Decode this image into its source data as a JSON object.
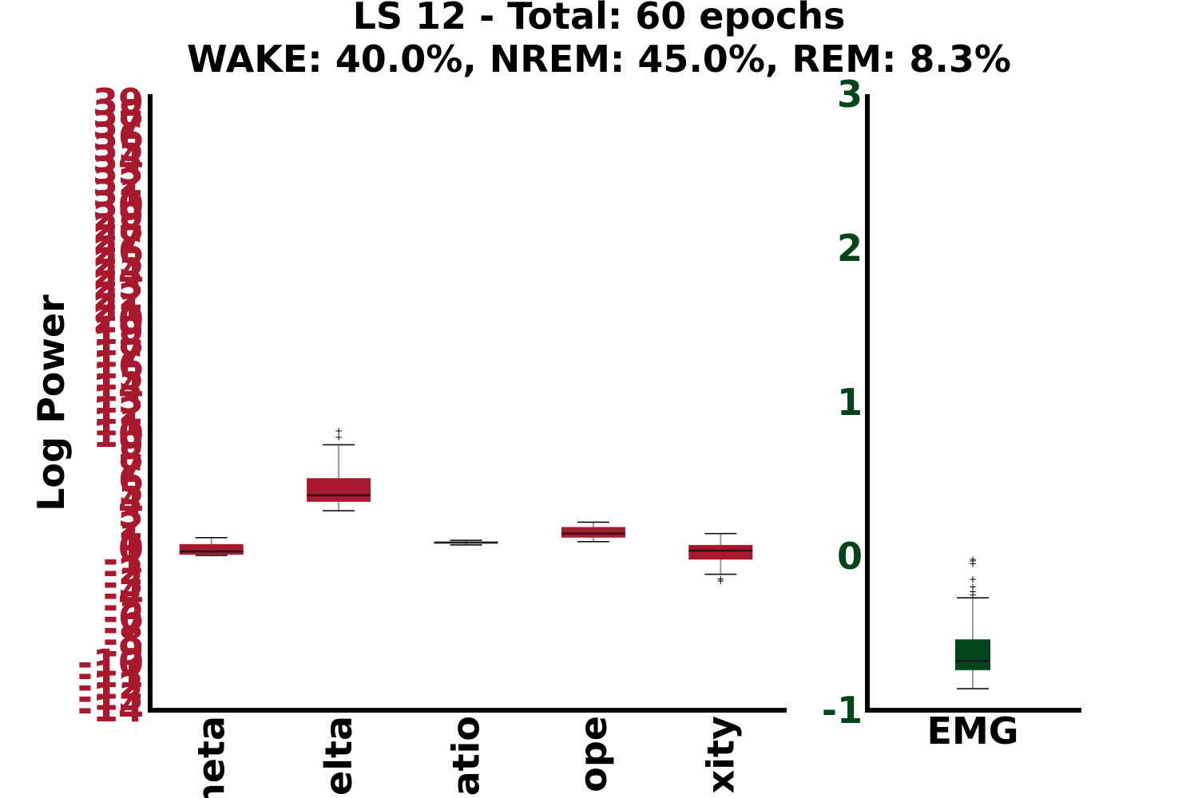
{
  "colors": {
    "left_accent": "#a8192e",
    "right_accent": "#02441b",
    "median": "#1a1a1a",
    "whisker": "#999999",
    "axis": "#000000"
  },
  "chart_data": [
    {
      "type": "box",
      "title": "LS 12 - Total: 60 epochs",
      "subtitle": "WAKE: 40.0%, NREM: 45.0%, REM: 8.3%",
      "ylabel": "Log Power",
      "ylim": [
        -14,
        39
      ],
      "yticks": [
        -14,
        -13,
        -12,
        -11,
        -10,
        -9,
        -8,
        -7,
        -6,
        -5,
        -4,
        -3,
        -2,
        -1,
        0,
        1,
        2,
        3,
        4,
        5,
        6,
        7,
        8,
        9,
        10,
        11,
        12,
        13,
        14,
        15,
        16,
        17,
        18,
        19,
        20,
        21,
        22,
        23,
        24,
        25,
        26,
        27,
        28,
        29,
        30,
        31,
        32,
        33,
        34,
        35,
        36,
        37,
        38,
        39
      ],
      "categories": [
        "Theta",
        "Delta",
        "Ratio",
        "Slope",
        "Complexity"
      ],
      "visible_category_text": [
        "heta",
        "elta",
        "atio",
        "ope",
        "xity"
      ],
      "boxes": [
        {
          "whislo": -0.35,
          "q1": -0.3,
          "med": -0.1,
          "q3": 0.35,
          "whishi": 0.75,
          "fliers": []
        },
        {
          "whislo": 2.4,
          "q1": 2.95,
          "med": 3.35,
          "q3": 4.4,
          "whishi": 6.45,
          "fliers": [
            6.9,
            7.3
          ]
        },
        {
          "whislo": 0.3,
          "q1": 0.38,
          "med": 0.45,
          "q3": 0.5,
          "whishi": 0.58,
          "fliers": []
        },
        {
          "whislo": 0.5,
          "q1": 0.75,
          "med": 1.0,
          "q3": 1.4,
          "whishi": 1.7,
          "fliers": []
        },
        {
          "whislo": -1.5,
          "q1": -0.6,
          "med": -0.05,
          "q3": 0.3,
          "whishi": 1.0,
          "fliers": [
            -1.8,
            -1.9
          ]
        }
      ]
    },
    {
      "type": "box",
      "ylim": [
        -1,
        3
      ],
      "yticks": [
        -1,
        0,
        1,
        2,
        3
      ],
      "categories": [
        "EMG"
      ],
      "boxes": [
        {
          "whislo": -0.86,
          "q1": -0.74,
          "med": -0.68,
          "q3": -0.54,
          "whishi": -0.27,
          "fliers": [
            -0.02,
            -0.03,
            -0.05,
            -0.15,
            -0.2,
            -0.23,
            -0.25
          ]
        }
      ]
    }
  ]
}
